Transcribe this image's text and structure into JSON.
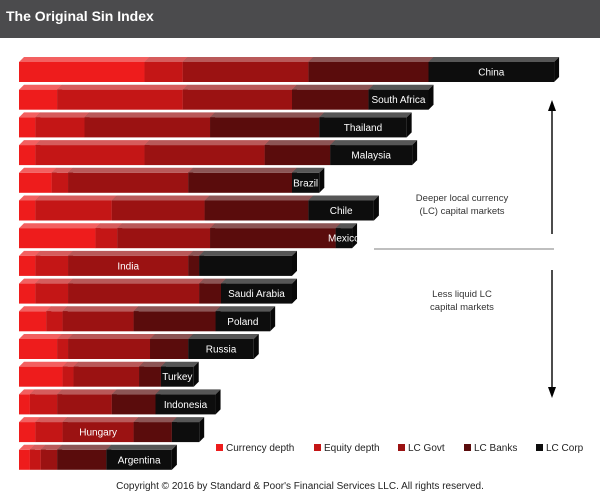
{
  "title": "The Original Sin Index",
  "copyright": "Copyright © 2016 by Standard & Poor's Financial Services LLC. All rights reserved.",
  "annotations": {
    "upper": [
      "Deeper local currency",
      "(LC) capital markets"
    ],
    "lower": [
      "Less liquid LC",
      "capital markets"
    ]
  },
  "colors": {
    "currency_depth": "#ee1c1c",
    "equity_depth": "#c41616",
    "lc_govt": "#9b1212",
    "lc_banks": "#5a0c0c",
    "lc_corp": "#0d0d0d"
  },
  "chart_data": {
    "type": "bar",
    "stacked": true,
    "orientation": "horizontal",
    "title": "The Original Sin Index",
    "categories": [
      "China",
      "South Africa",
      "Thailand",
      "Malaysia",
      "Brazil",
      "Chile",
      "Mexico",
      "India",
      "Saudi Arabia",
      "Poland",
      "Russia",
      "Turkey",
      "Indonesia",
      "Hungary",
      "Argentina"
    ],
    "series": [
      {
        "name": "Currency depth",
        "values": [
          23,
          7,
          3,
          3,
          6,
          3,
          14,
          3,
          3,
          5,
          7,
          8,
          2,
          3,
          2
        ]
      },
      {
        "name": "Equity depth",
        "values": [
          7,
          23,
          9,
          20,
          3,
          14,
          4,
          6,
          6,
          3,
          2,
          2,
          5,
          5,
          2
        ]
      },
      {
        "name": "LC Govt",
        "values": [
          23,
          20,
          23,
          22,
          22,
          17,
          17,
          22,
          24,
          13,
          15,
          12,
          10,
          13,
          3
        ]
      },
      {
        "name": "LC Banks",
        "values": [
          22,
          14,
          20,
          12,
          19,
          19,
          23,
          2,
          4,
          15,
          7,
          4,
          8,
          7,
          9
        ]
      },
      {
        "name": "LC Corp",
        "values": [
          23,
          11,
          16,
          15,
          5,
          12,
          3,
          17,
          13,
          10,
          12,
          6,
          11,
          5,
          12
        ]
      }
    ],
    "legend": "bottom-right",
    "grid": false
  }
}
